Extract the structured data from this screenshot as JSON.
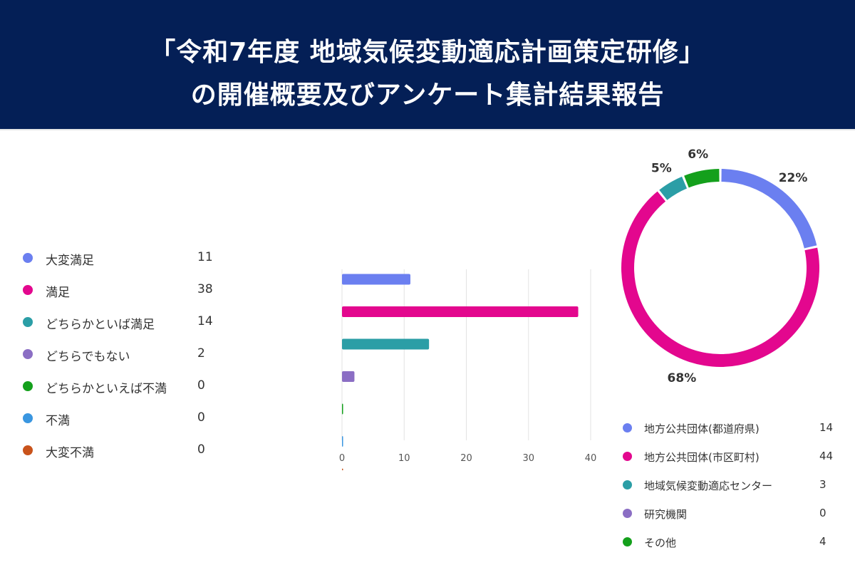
{
  "header": {
    "title_line1": "「令和7年度 地域気候変動適応計画策定研修」",
    "title_line2": "の開催概要及びアンケート集計結果報告"
  },
  "colors": {
    "header_bg": "#041f56",
    "blue": "#6b7ff0",
    "magenta": "#e3078e",
    "teal": "#2b9ea6",
    "purple": "#8b6ec4",
    "green": "#14a01c",
    "light_blue": "#3a96e0",
    "orange": "#c9531b"
  },
  "chart_data": [
    {
      "type": "bar",
      "orientation": "horizontal",
      "categories": [
        "大変満足",
        "満足",
        "どちらかといば満足",
        "どちらでもない",
        "どちらかといえば不満",
        "不満",
        "大変不満"
      ],
      "values": [
        11,
        38,
        14,
        2,
        0,
        0,
        0
      ],
      "colors": [
        "#6b7ff0",
        "#e3078e",
        "#2b9ea6",
        "#8b6ec4",
        "#14a01c",
        "#3a96e0",
        "#c9531b"
      ],
      "xlim": [
        0,
        40
      ],
      "xticks": [
        0,
        10,
        20,
        30,
        40
      ],
      "grid": true,
      "legend": "left"
    },
    {
      "type": "pie",
      "donut": true,
      "categories": [
        "地方公共団体(都道府県)",
        "地方公共団体(市区町村)",
        "地域気候変動適応センター",
        "研究機関",
        "その他"
      ],
      "values": [
        14,
        44,
        3,
        0,
        4
      ],
      "colors": [
        "#6b7ff0",
        "#e3078e",
        "#2b9ea6",
        "#8b6ec4",
        "#14a01c"
      ],
      "data_labels": [
        "22%",
        "68%",
        "5%",
        "",
        "6%"
      ],
      "legend": "bottom"
    }
  ]
}
